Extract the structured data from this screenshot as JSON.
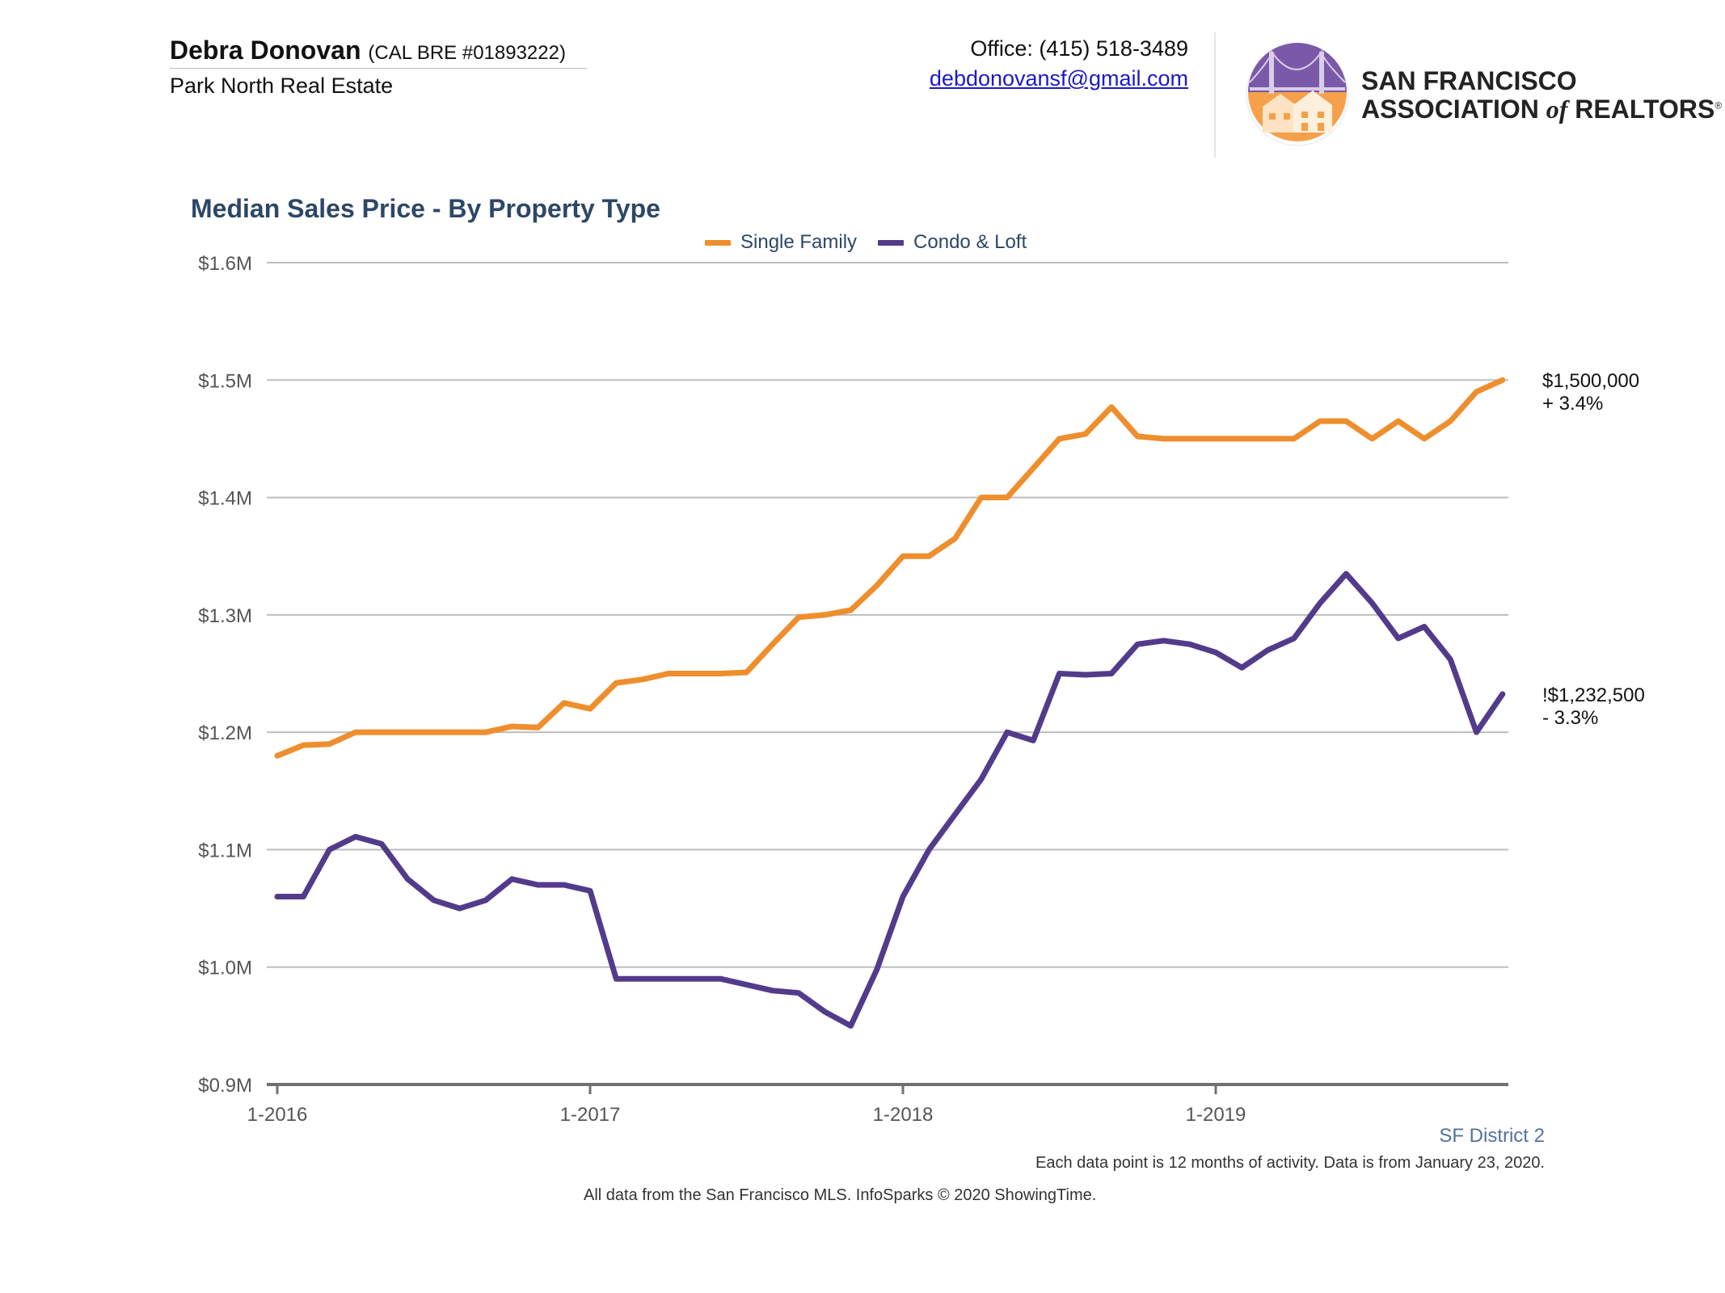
{
  "header": {
    "agent_name": "Debra Donovan",
    "agent_license": "(CAL BRE #01893222)",
    "brokerage": "Park North Real Estate",
    "office_phone": "Office: (415) 518-3489",
    "email": "debdonovansf@gmail.com",
    "org_line1": "SAN FRANCISCO",
    "org_line2_a": "ASSOCIATION",
    "org_line2_of": "of",
    "org_line2_b": "REALTORS",
    "org_mark": "®"
  },
  "chart_data": {
    "type": "line",
    "title": "Median Sales Price - By Property Type",
    "x_tick_labels": [
      "1-2016",
      "1-2017",
      "1-2018",
      "1-2019"
    ],
    "x_start": "1-2016",
    "x_end": "12-2019",
    "y_ticks": [
      "$0.9M",
      "$1.0M",
      "$1.1M",
      "$1.2M",
      "$1.3M",
      "$1.4M",
      "$1.5M",
      "$1.6M"
    ],
    "ylim": [
      900000,
      1600000
    ],
    "grid": true,
    "legend_position": "top-center",
    "series": [
      {
        "name": "Single Family",
        "color": "#ef8e2c",
        "values": [
          1180000,
          1189000,
          1190000,
          1200000,
          1200000,
          1200000,
          1200000,
          1200000,
          1200000,
          1205000,
          1204000,
          1225000,
          1220000,
          1242000,
          1245000,
          1250000,
          1250000,
          1250000,
          1251000,
          1275000,
          1298000,
          1300000,
          1304000,
          1325000,
          1350000,
          1350000,
          1365000,
          1400000,
          1400000,
          1425000,
          1450000,
          1454000,
          1477000,
          1452000,
          1450000,
          1450000,
          1450000,
          1450000,
          1450000,
          1450000,
          1465000,
          1465000,
          1450000,
          1465000,
          1450000,
          1465000,
          1490000,
          1500000
        ],
        "end_value": "$1,500,000",
        "end_change": "+ 3.4%"
      },
      {
        "name": "Condo & Loft",
        "color": "#533b8b",
        "values": [
          1060000,
          1060000,
          1100000,
          1111000,
          1105000,
          1075000,
          1057000,
          1050000,
          1057000,
          1075000,
          1070000,
          1070000,
          1065000,
          990000,
          990000,
          990000,
          990000,
          990000,
          985000,
          980000,
          978000,
          962000,
          950000,
          998000,
          1060000,
          1100000,
          1130000,
          1160000,
          1200000,
          1193000,
          1250000,
          1249000,
          1250000,
          1275000,
          1278000,
          1275000,
          1268000,
          1255000,
          1270000,
          1280000,
          1310000,
          1335000,
          1310000,
          1280000,
          1290000,
          1262000,
          1200000,
          1232500
        ],
        "end_value": "!$1,232,500",
        "end_change": "- 3.3%"
      }
    ]
  },
  "footer": {
    "region": "SF District 2",
    "note": "Each data point is 12 months of activity. Data is from January 23, 2020.",
    "source": "All data from the San Francisco MLS. InfoSparks © 2020 ShowingTime."
  }
}
